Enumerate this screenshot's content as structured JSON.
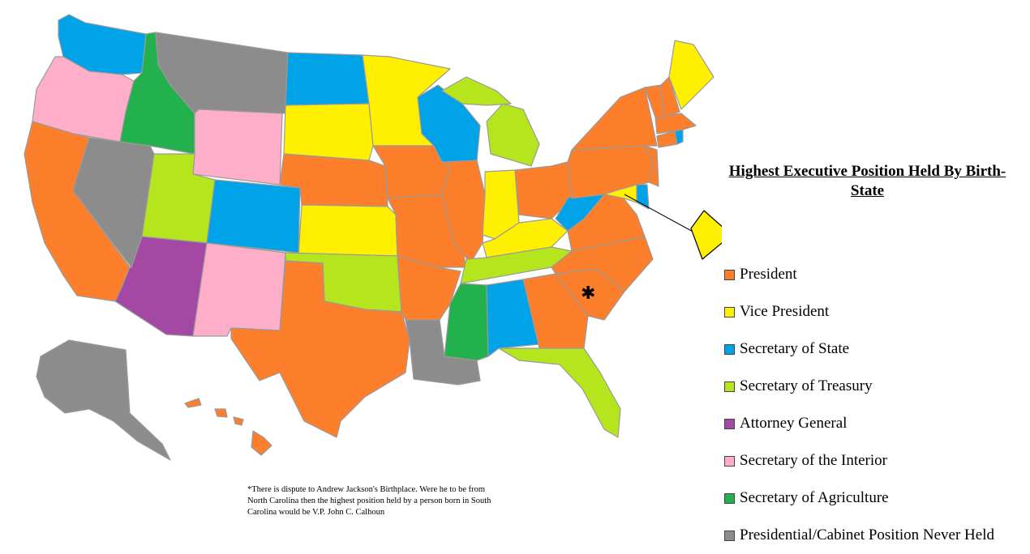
{
  "title": "Highest Executive Position Held By Birth-State",
  "colors": {
    "president": "#fd7e2b",
    "vice_president": "#ffef00",
    "secretary_of_state": "#00a2e8",
    "secretary_of_treasury": "#b5e61d",
    "attorney_general": "#a349a4",
    "secretary_of_interior": "#ffaec9",
    "secretary_of_agriculture": "#22b14c",
    "never_held": "#8c8c8c"
  },
  "legend": [
    {
      "label": "President",
      "color": "#fd7e2b"
    },
    {
      "label": "Vice President",
      "color": "#ffef00"
    },
    {
      "label": "Secretary of State",
      "color": "#00a2e8"
    },
    {
      "label": "Secretary of Treasury",
      "color": "#b5e61d"
    },
    {
      "label": "Attorney General",
      "color": "#a349a4"
    },
    {
      "label": "Secretary of the Interior",
      "color": "#ffaec9"
    },
    {
      "label": "Secretary of Agriculture",
      "color": "#22b14c"
    },
    {
      "label": "Presidential/Cabinet Position Never Held",
      "color": "#8c8c8c"
    }
  ],
  "footnote": "*There is dispute to Andrew Jackson's Birthplace. Were he to be from North Carolina then the highest position held by a person born in South Carolina would be V.P. John C. Calhoun",
  "marker_symbol": "✱",
  "states": {
    "WA": "secretary_of_state",
    "OR": "secretary_of_interior",
    "CA": "president",
    "NV": "never_held",
    "ID": "secretary_of_agriculture",
    "MT": "never_held",
    "WY": "secretary_of_interior",
    "UT": "secretary_of_treasury",
    "AZ": "attorney_general",
    "CO": "secretary_of_state",
    "NM": "secretary_of_interior",
    "ND": "secretary_of_state",
    "SD": "vice_president",
    "NE": "president",
    "KS": "vice_president",
    "OK": "secretary_of_treasury",
    "TX": "president",
    "MN": "vice_president",
    "IA": "president",
    "MO": "president",
    "AR": "president",
    "LA": "never_held",
    "WI": "secretary_of_state",
    "IL": "president",
    "MI": "secretary_of_treasury",
    "IN": "vice_president",
    "OH": "president",
    "KY": "vice_president",
    "TN": "secretary_of_treasury",
    "MS": "secretary_of_agriculture",
    "AL": "secretary_of_state",
    "GA": "president",
    "FL": "secretary_of_treasury",
    "SC": "president",
    "NC": "president",
    "VA": "president",
    "WV": "secretary_of_state",
    "PA": "president",
    "NY": "president",
    "NJ": "president",
    "DE": "secretary_of_state",
    "MD": "vice_president",
    "DC": "vice_president",
    "CT": "president",
    "RI": "secretary_of_state",
    "MA": "president",
    "VT": "president",
    "NH": "president",
    "ME": "vice_president",
    "AK": "never_held",
    "HI": "president"
  }
}
